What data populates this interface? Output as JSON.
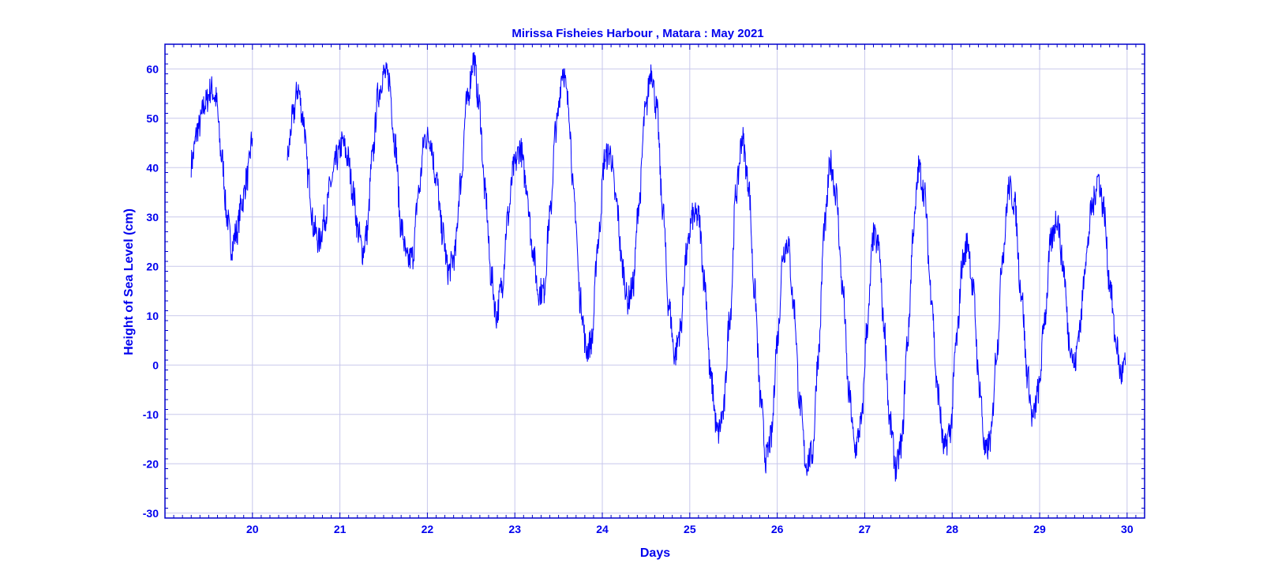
{
  "chart_data": {
    "type": "line",
    "title": "Mirissa  Fisheies Harbour , Matara : May 2021",
    "xlabel": "Days",
    "ylabel": "Height of Sea Level (cm)",
    "xlim": [
      19.0,
      30.2
    ],
    "ylim": [
      -31,
      65
    ],
    "xticks": [
      20,
      21,
      22,
      23,
      24,
      25,
      26,
      27,
      28,
      29,
      30
    ],
    "yticks": [
      -30,
      -20,
      -10,
      0,
      10,
      20,
      30,
      40,
      50,
      60
    ],
    "grid": true,
    "line_color": "#0000ff",
    "axis_color": "#0000cc",
    "grid_color": "#c8c8ec",
    "series": [
      {
        "segments": [
          [
            [
              19.3,
              41
            ],
            [
              19.38,
              48
            ],
            [
              19.46,
              53
            ],
            [
              19.53,
              56
            ],
            [
              19.58,
              54
            ],
            [
              19.65,
              42
            ],
            [
              19.71,
              30
            ],
            [
              19.76,
              24
            ],
            [
              19.82,
              27
            ],
            [
              19.88,
              33
            ],
            [
              19.94,
              38
            ],
            [
              20.0,
              46
            ]
          ],
          [
            [
              20.4,
              42
            ],
            [
              20.46,
              50
            ],
            [
              20.52,
              56
            ],
            [
              20.58,
              50
            ],
            [
              20.64,
              38
            ],
            [
              20.7,
              28
            ],
            [
              20.76,
              25
            ],
            [
              20.83,
              30
            ],
            [
              20.9,
              37
            ],
            [
              20.97,
              42
            ],
            [
              21.03,
              45
            ],
            [
              21.09,
              42
            ],
            [
              21.15,
              35
            ],
            [
              21.21,
              27
            ],
            [
              21.26,
              23
            ],
            [
              21.31,
              27
            ],
            [
              21.37,
              42
            ],
            [
              21.44,
              55
            ],
            [
              21.5,
              59
            ],
            [
              21.56,
              58
            ],
            [
              21.63,
              45
            ],
            [
              21.7,
              28
            ],
            [
              21.77,
              21
            ],
            [
              21.83,
              22
            ],
            [
              21.9,
              35
            ],
            [
              21.97,
              46
            ],
            [
              22.03,
              46
            ],
            [
              22.1,
              38
            ],
            [
              22.17,
              27
            ],
            [
              22.24,
              19
            ],
            [
              22.31,
              22
            ],
            [
              22.38,
              37
            ],
            [
              22.45,
              53
            ],
            [
              22.53,
              62
            ],
            [
              22.59,
              53
            ],
            [
              22.66,
              35
            ],
            [
              22.73,
              18
            ],
            [
              22.79,
              10
            ],
            [
              22.85,
              16
            ],
            [
              22.92,
              30
            ],
            [
              22.99,
              40
            ],
            [
              23.06,
              44
            ],
            [
              23.13,
              37
            ],
            [
              23.2,
              24
            ],
            [
              23.27,
              15
            ],
            [
              23.33,
              15
            ],
            [
              23.4,
              30
            ],
            [
              23.47,
              48
            ],
            [
              23.55,
              60
            ],
            [
              23.61,
              53
            ],
            [
              23.68,
              33
            ],
            [
              23.75,
              13
            ],
            [
              23.82,
              3
            ],
            [
              23.88,
              5
            ],
            [
              23.95,
              25
            ],
            [
              24.03,
              42
            ],
            [
              24.09,
              43
            ],
            [
              24.16,
              33
            ],
            [
              24.23,
              20
            ],
            [
              24.29,
              13
            ],
            [
              24.35,
              16
            ],
            [
              24.42,
              33
            ],
            [
              24.49,
              51
            ],
            [
              24.56,
              60
            ],
            [
              24.62,
              52
            ],
            [
              24.69,
              32
            ],
            [
              24.76,
              12
            ],
            [
              24.83,
              2
            ],
            [
              24.89,
              7
            ],
            [
              24.96,
              22
            ],
            [
              25.03,
              30
            ],
            [
              25.1,
              30
            ],
            [
              25.17,
              17
            ],
            [
              25.24,
              -3
            ],
            [
              25.32,
              -14
            ],
            [
              25.38,
              -10
            ],
            [
              25.46,
              10
            ],
            [
              25.53,
              35
            ],
            [
              25.6,
              46
            ],
            [
              25.67,
              37
            ],
            [
              25.74,
              15
            ],
            [
              25.81,
              -7
            ],
            [
              25.87,
              -19
            ],
            [
              25.93,
              -15
            ],
            [
              26.0,
              5
            ],
            [
              26.07,
              23
            ],
            [
              26.12,
              25
            ],
            [
              26.19,
              12
            ],
            [
              26.26,
              -8
            ],
            [
              26.33,
              -20
            ],
            [
              26.4,
              -18
            ],
            [
              26.47,
              2
            ],
            [
              26.54,
              28
            ],
            [
              26.61,
              41
            ],
            [
              26.67,
              35
            ],
            [
              26.75,
              15
            ],
            [
              26.82,
              -6
            ],
            [
              26.89,
              -17
            ],
            [
              26.96,
              -12
            ],
            [
              27.03,
              8
            ],
            [
              27.1,
              26
            ],
            [
              27.16,
              24
            ],
            [
              27.22,
              8
            ],
            [
              27.29,
              -12
            ],
            [
              27.36,
              -21
            ],
            [
              27.42,
              -16
            ],
            [
              27.49,
              5
            ],
            [
              27.56,
              28
            ],
            [
              27.62,
              40
            ],
            [
              27.68,
              35
            ],
            [
              27.76,
              15
            ],
            [
              27.83,
              -5
            ],
            [
              27.91,
              -17
            ],
            [
              27.98,
              -13
            ],
            [
              28.05,
              5
            ],
            [
              28.12,
              21
            ],
            [
              28.18,
              25
            ],
            [
              28.24,
              15
            ],
            [
              28.31,
              -4
            ],
            [
              28.38,
              -18
            ],
            [
              28.44,
              -15
            ],
            [
              28.51,
              3
            ],
            [
              28.58,
              23
            ],
            [
              28.65,
              36
            ],
            [
              28.71,
              33
            ],
            [
              28.79,
              15
            ],
            [
              28.86,
              -2
            ],
            [
              28.92,
              -11
            ],
            [
              28.99,
              -5
            ],
            [
              29.06,
              10
            ],
            [
              29.13,
              25
            ],
            [
              29.2,
              30
            ],
            [
              29.27,
              20
            ],
            [
              29.34,
              5
            ],
            [
              29.4,
              0
            ],
            [
              29.46,
              8
            ],
            [
              29.53,
              22
            ],
            [
              29.6,
              32
            ],
            [
              29.67,
              38
            ],
            [
              29.73,
              32
            ],
            [
              29.8,
              17
            ],
            [
              29.87,
              5
            ],
            [
              29.93,
              -2
            ],
            [
              29.98,
              0
            ]
          ]
        ]
      }
    ]
  }
}
